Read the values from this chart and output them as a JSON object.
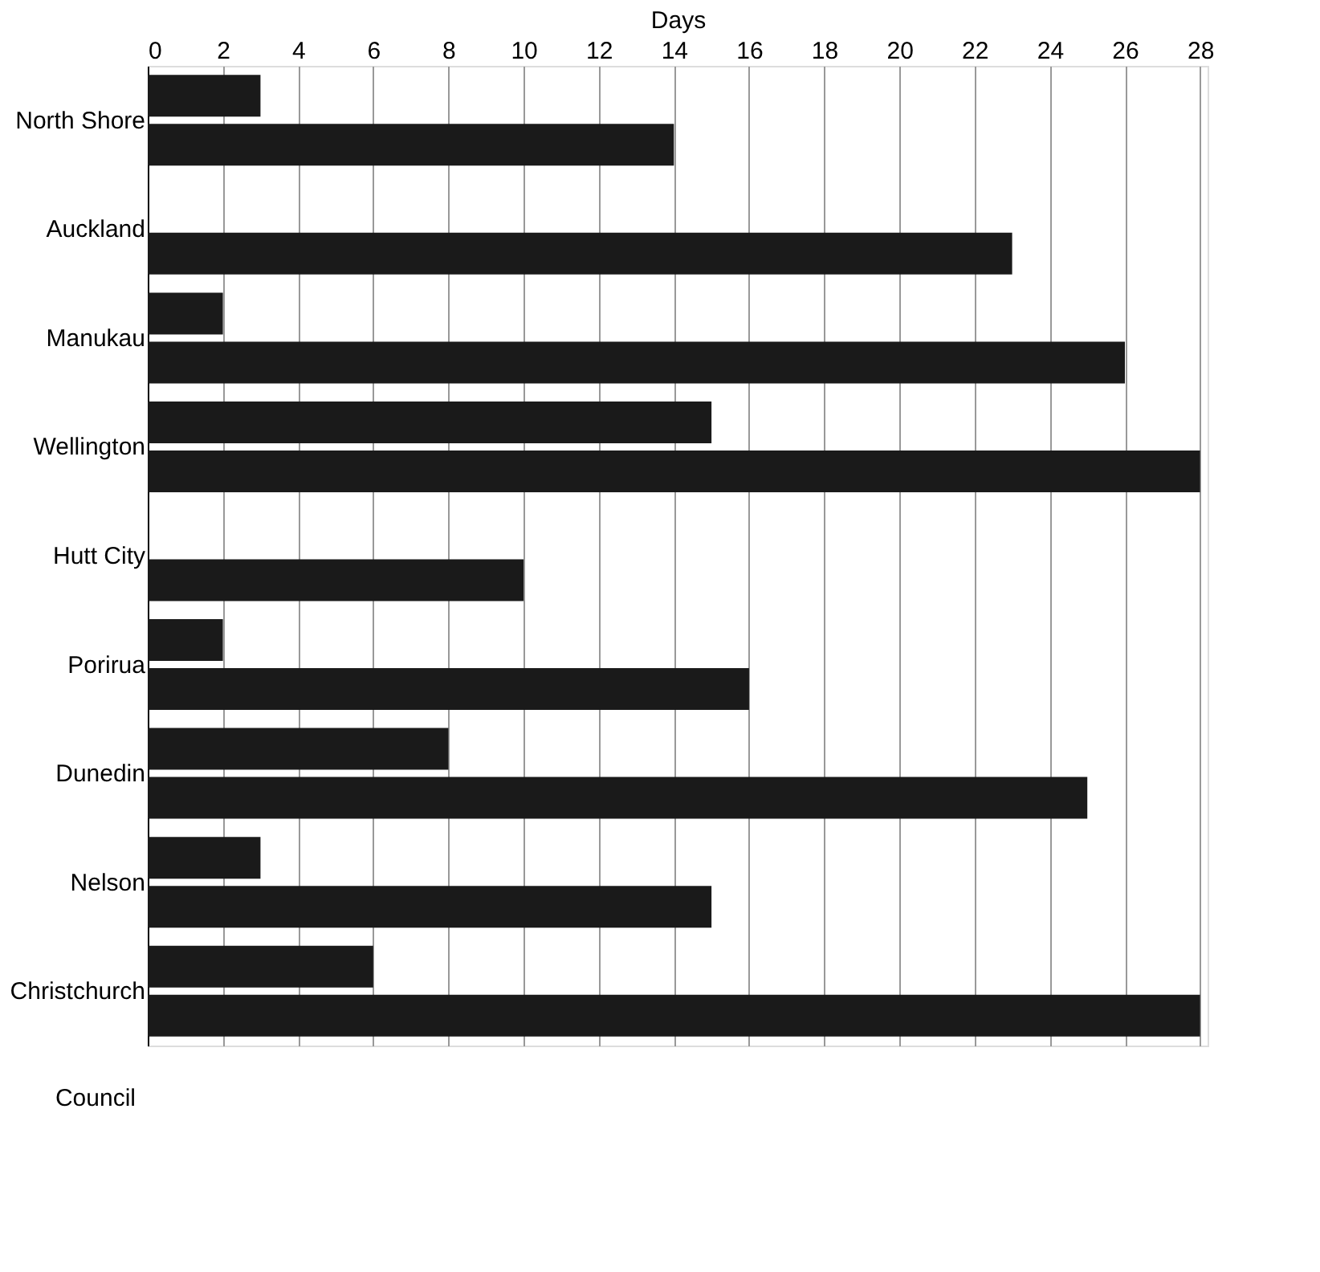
{
  "chart_data": {
    "type": "bar",
    "orientation": "horizontal",
    "xlabel": "Days",
    "ylabel": "Council",
    "categories": [
      "North Shore",
      "Auckland",
      "Manukau",
      "Wellington",
      "Hutt City",
      "Porirua",
      "Dunedin",
      "Nelson",
      "Christchurch"
    ],
    "series": [
      {
        "color": "#1a1a1a",
        "values": [
          3,
          null,
          2,
          15,
          null,
          2,
          8,
          3,
          6
        ]
      },
      {
        "color": "#1a1a1a",
        "values": [
          14,
          23,
          26,
          28,
          10,
          16,
          25,
          15,
          28
        ]
      }
    ],
    "xlim": [
      0,
      28.2
    ],
    "xticks": [
      0,
      2,
      4,
      6,
      8,
      10,
      12,
      14,
      16,
      18,
      20,
      22,
      24,
      26,
      28
    ],
    "grid": "x",
    "legend": false
  }
}
